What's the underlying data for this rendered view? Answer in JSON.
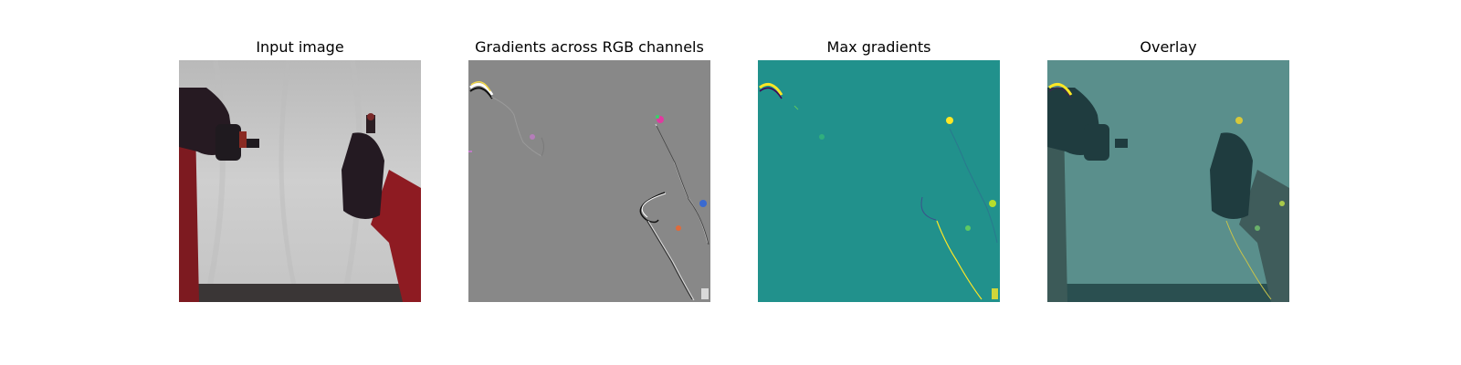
{
  "figure": {
    "panels": [
      {
        "title": "Input image"
      },
      {
        "title": "Gradients across RGB channels"
      },
      {
        "title": "Max gradients"
      },
      {
        "title": "Overlay"
      }
    ]
  },
  "colors": {
    "page_bg": "#ffffff",
    "input_backdrop": "#c9c9c9",
    "robot_arm_red": "#8e1b22",
    "gripper_dark": "#241a22",
    "gradient_gray": "#888888",
    "viridis_mid": "#21918c",
    "viridis_yellow": "#fde725",
    "viridis_dark": "#440154",
    "overlay_tint": "#4f8a87"
  }
}
